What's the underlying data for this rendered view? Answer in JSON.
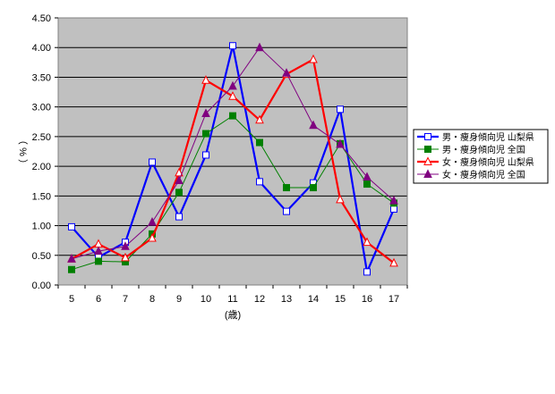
{
  "chart_data": {
    "type": "line",
    "title": "",
    "xlabel": "(歳)",
    "ylabel": "（ % ）",
    "ylim": [
      0,
      4.5
    ],
    "y_ticks": [
      "0.00",
      "0.50",
      "1.00",
      "1.50",
      "2.00",
      "2.50",
      "3.00",
      "3.50",
      "4.00",
      "4.50"
    ],
    "categories": [
      "5",
      "6",
      "7",
      "8",
      "9",
      "10",
      "11",
      "12",
      "13",
      "14",
      "15",
      "16",
      "17"
    ],
    "grid": true,
    "legend_position": "right",
    "plot_background": "#c0c0c0",
    "series": [
      {
        "name": "男・痩身傾向児 山梨県",
        "color": "#0000ff",
        "marker": "square-open",
        "values": [
          0.98,
          0.47,
          0.72,
          2.07,
          1.15,
          2.19,
          4.03,
          1.74,
          1.24,
          1.72,
          2.96,
          0.22,
          1.28
        ]
      },
      {
        "name": "男・痩身傾向児 全国",
        "color": "#008000",
        "marker": "square-filled",
        "values": [
          0.26,
          0.4,
          0.39,
          0.86,
          1.56,
          2.55,
          2.85,
          2.4,
          1.64,
          1.64,
          2.38,
          1.7,
          1.38
        ]
      },
      {
        "name": "女・痩身傾向児 山梨県",
        "color": "#ff0000",
        "marker": "triangle-open",
        "values": [
          0.44,
          0.69,
          0.46,
          0.79,
          1.89,
          3.45,
          3.18,
          2.78,
          3.55,
          3.8,
          1.44,
          0.72,
          0.37
        ]
      },
      {
        "name": "女・痩身傾向児 全国",
        "color": "#800080",
        "marker": "triangle-filled",
        "values": [
          0.44,
          0.57,
          0.65,
          1.06,
          1.76,
          2.89,
          3.35,
          4.0,
          3.57,
          2.69,
          2.37,
          1.82,
          1.42
        ]
      }
    ]
  }
}
